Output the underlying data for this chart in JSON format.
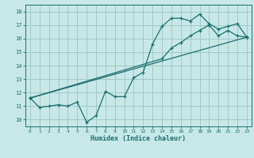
{
  "xlabel": "Humidex (Indice chaleur)",
  "bg_color": "#c8e8e8",
  "grid_color": "#a0c8c8",
  "line_color": "#1a6e6e",
  "xlim": [
    -0.5,
    23.5
  ],
  "ylim": [
    9.5,
    18.5
  ],
  "xticks": [
    0,
    1,
    2,
    3,
    4,
    5,
    6,
    7,
    8,
    9,
    10,
    11,
    12,
    13,
    14,
    15,
    16,
    17,
    18,
    19,
    20,
    21,
    22,
    23
  ],
  "yticks": [
    10,
    11,
    12,
    13,
    14,
    15,
    16,
    17,
    18
  ],
  "line1_x": [
    0,
    1,
    2,
    3,
    4,
    5,
    6,
    7,
    8,
    9,
    10,
    11,
    12,
    13,
    14,
    15,
    16,
    17,
    18,
    19,
    20,
    21,
    22,
    23
  ],
  "line1_y": [
    11.6,
    10.9,
    11.0,
    11.1,
    11.0,
    11.3,
    9.8,
    10.3,
    12.1,
    11.7,
    11.7,
    13.1,
    13.5,
    15.6,
    16.9,
    17.5,
    17.5,
    17.3,
    17.8,
    17.1,
    16.7,
    16.9,
    17.1,
    16.1
  ],
  "line2_x": [
    0,
    14,
    15,
    16,
    17,
    18,
    19,
    20,
    21,
    22,
    23
  ],
  "line2_y": [
    11.6,
    14.5,
    15.3,
    15.7,
    16.2,
    16.6,
    17.0,
    16.2,
    16.6,
    16.2,
    16.1
  ],
  "line3_x": [
    0,
    23
  ],
  "line3_y": [
    11.6,
    16.1
  ]
}
